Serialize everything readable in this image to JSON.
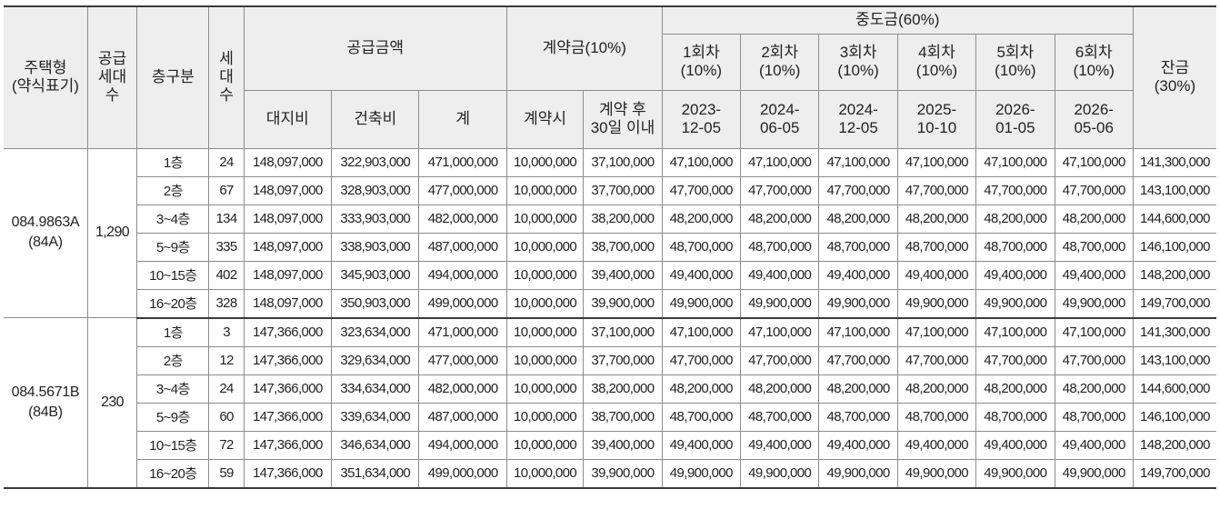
{
  "headers": {
    "housing_type": "주택형\n(약식표기)",
    "supply_units": "공급\n세대\n수",
    "floor_group": "층구분",
    "households": "세\n대\n수",
    "supply_price": "공급금액",
    "land_cost": "대지비",
    "building_cost": "건축비",
    "total": "계",
    "contract": "계약금(10%)",
    "contract_at": "계약시",
    "contract_30d": "계약 후\n30일 이내",
    "interim": "중도금(60%)",
    "interim_rounds": [
      {
        "label": "1회차\n(10%)",
        "date": "2023-\n12-05"
      },
      {
        "label": "2회차\n(10%)",
        "date": "2024-\n06-05"
      },
      {
        "label": "3회차\n(10%)",
        "date": "2024-\n12-05"
      },
      {
        "label": "4회차\n(10%)",
        "date": "2025-\n10-10"
      },
      {
        "label": "5회차\n(10%)",
        "date": "2026-\n01-05"
      },
      {
        "label": "6회차\n(10%)",
        "date": "2026-\n05-06"
      }
    ],
    "balance": "잔금\n(30%)"
  },
  "groups": [
    {
      "type": "084.9863A\n(84A)",
      "supply_units": "1,290",
      "rows": [
        {
          "floor": "1층",
          "hh": "24",
          "land": "148,097,000",
          "build": "322,903,000",
          "total": "471,000,000",
          "c1": "10,000,000",
          "c2": "37,100,000",
          "interim": "47,100,000",
          "balance": "141,300,000"
        },
        {
          "floor": "2층",
          "hh": "67",
          "land": "148,097,000",
          "build": "328,903,000",
          "total": "477,000,000",
          "c1": "10,000,000",
          "c2": "37,700,000",
          "interim": "47,700,000",
          "balance": "143,100,000"
        },
        {
          "floor": "3~4층",
          "hh": "134",
          "land": "148,097,000",
          "build": "333,903,000",
          "total": "482,000,000",
          "c1": "10,000,000",
          "c2": "38,200,000",
          "interim": "48,200,000",
          "balance": "144,600,000"
        },
        {
          "floor": "5~9층",
          "hh": "335",
          "land": "148,097,000",
          "build": "338,903,000",
          "total": "487,000,000",
          "c1": "10,000,000",
          "c2": "38,700,000",
          "interim": "48,700,000",
          "balance": "146,100,000"
        },
        {
          "floor": "10~15층",
          "hh": "402",
          "land": "148,097,000",
          "build": "345,903,000",
          "total": "494,000,000",
          "c1": "10,000,000",
          "c2": "39,400,000",
          "interim": "49,400,000",
          "balance": "148,200,000"
        },
        {
          "floor": "16~20층",
          "hh": "328",
          "land": "148,097,000",
          "build": "350,903,000",
          "total": "499,000,000",
          "c1": "10,000,000",
          "c2": "39,900,000",
          "interim": "49,900,000",
          "balance": "149,700,000"
        }
      ]
    },
    {
      "type": "084.5671B\n(84B)",
      "supply_units": "230",
      "rows": [
        {
          "floor": "1층",
          "hh": "3",
          "land": "147,366,000",
          "build": "323,634,000",
          "total": "471,000,000",
          "c1": "10,000,000",
          "c2": "37,100,000",
          "interim": "47,100,000",
          "balance": "141,300,000"
        },
        {
          "floor": "2층",
          "hh": "12",
          "land": "147,366,000",
          "build": "329,634,000",
          "total": "477,000,000",
          "c1": "10,000,000",
          "c2": "37,700,000",
          "interim": "47,700,000",
          "balance": "143,100,000"
        },
        {
          "floor": "3~4층",
          "hh": "24",
          "land": "147,366,000",
          "build": "334,634,000",
          "total": "482,000,000",
          "c1": "10,000,000",
          "c2": "38,200,000",
          "interim": "48,200,000",
          "balance": "144,600,000"
        },
        {
          "floor": "5~9층",
          "hh": "60",
          "land": "147,366,000",
          "build": "339,634,000",
          "total": "487,000,000",
          "c1": "10,000,000",
          "c2": "38,700,000",
          "interim": "48,700,000",
          "balance": "146,100,000"
        },
        {
          "floor": "10~15층",
          "hh": "72",
          "land": "147,366,000",
          "build": "346,634,000",
          "total": "494,000,000",
          "c1": "10,000,000",
          "c2": "39,400,000",
          "interim": "49,400,000",
          "balance": "148,200,000"
        },
        {
          "floor": "16~20층",
          "hh": "59",
          "land": "147,366,000",
          "build": "351,634,000",
          "total": "499,000,000",
          "c1": "10,000,000",
          "c2": "39,900,000",
          "interim": "49,900,000",
          "balance": "149,700,000"
        }
      ]
    }
  ]
}
